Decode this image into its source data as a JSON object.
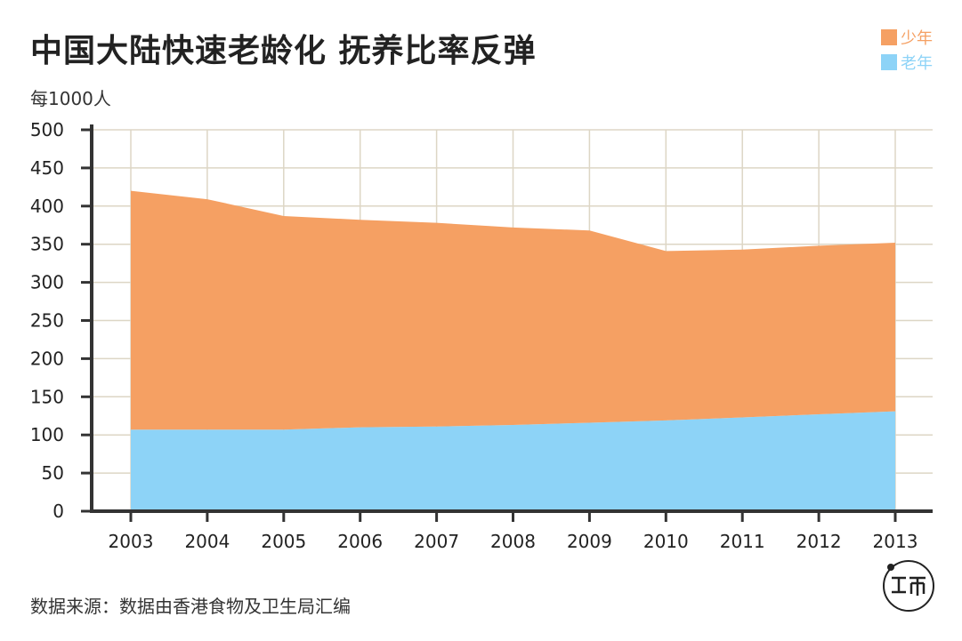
{
  "title": "中国大陆快速老龄化 抚养比率反弹",
  "unit_label": "每1000人",
  "source": "数据来源：数据由香港食物及卫生局汇编",
  "legend": [
    {
      "label": "少年",
      "color": "#f5a063"
    },
    {
      "label": "老年",
      "color": "#8dd3f7"
    }
  ],
  "chart_data": {
    "type": "area",
    "stacked": true,
    "x": [
      "2003",
      "2004",
      "2005",
      "2006",
      "2007",
      "2008",
      "2009",
      "2010",
      "2011",
      "2012",
      "2013"
    ],
    "series": [
      {
        "name": "老年",
        "color": "#8dd3f7",
        "values": [
          107,
          107,
          107,
          110,
          111,
          113,
          116,
          119,
          123,
          127,
          131
        ]
      },
      {
        "name": "少年",
        "color": "#f5a063",
        "values": [
          313,
          302,
          280,
          272,
          267,
          259,
          252,
          222,
          220,
          221,
          221
        ]
      }
    ],
    "ylim": [
      0,
      500
    ],
    "yticks": [
      0,
      50,
      100,
      150,
      200,
      250,
      300,
      350,
      400,
      450,
      500
    ],
    "grid": true,
    "legend_position": "top-right"
  }
}
